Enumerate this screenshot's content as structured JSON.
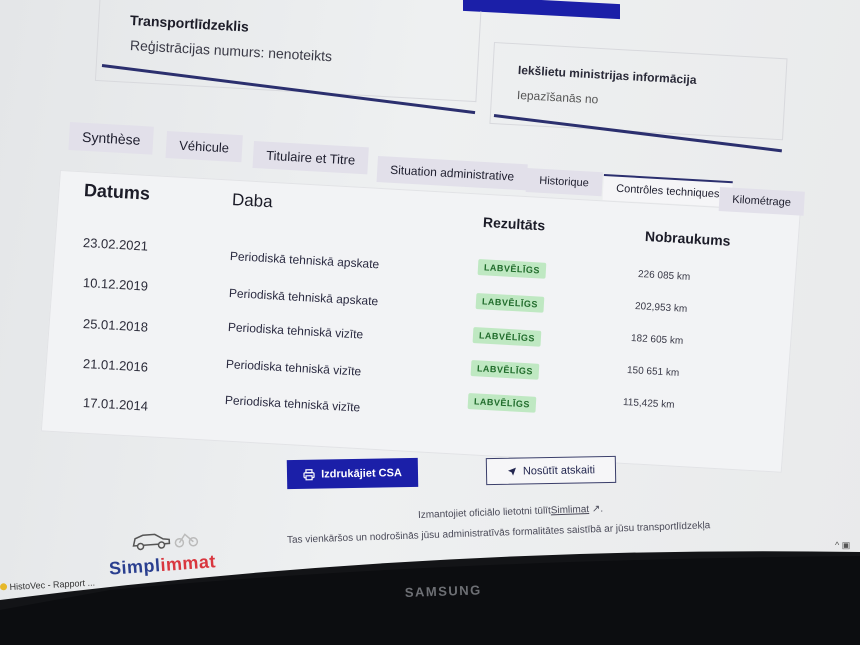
{
  "vehicle_card": {
    "title": "Transportlīdzeklis",
    "registration": "Reģistrācijas numurs: nenoteikts"
  },
  "ministry_card": {
    "title": "Iekšlietu ministrijas informācija",
    "subtitle": "Iepazīšanās no"
  },
  "tabs": [
    {
      "label": "Synthèse"
    },
    {
      "label": "Véhicule"
    },
    {
      "label": "Titulaire et Titre"
    },
    {
      "label": "Situation administrative"
    },
    {
      "label": "Historique"
    },
    {
      "label": "Contrôles techniques",
      "active": true
    },
    {
      "label": "Kilométrage"
    }
  ],
  "table": {
    "headers": [
      "Datums",
      "Daba",
      "Rezultāts",
      "Nobraukums"
    ],
    "rows": [
      {
        "date": "23.02.2021",
        "type": "Periodiskā tehniskā apskate",
        "result": "LABVĒLĪGS",
        "mileage": "226 085 km"
      },
      {
        "date": "10.12.2019",
        "type": "Periodiskā tehniskā apskate",
        "result": "LABVĒLĪGS",
        "mileage": "202,953 km"
      },
      {
        "date": "25.01.2018",
        "type": "Periodiska tehniskā vizīte",
        "result": "LABVĒLĪGS",
        "mileage": "182 605 km"
      },
      {
        "date": "21.01.2016",
        "type": "Periodiska tehniskā vizīte",
        "result": "LABVĒLĪGS",
        "mileage": "150 651 km"
      },
      {
        "date": "17.01.2014",
        "type": "Periodiska tehniskā vizīte",
        "result": "LABVĒLĪGS",
        "mileage": "115,425 km"
      }
    ]
  },
  "actions": {
    "print_label": "Izdrukājiet CSA",
    "send_label": "Nosūtīt atskaiti"
  },
  "footer": {
    "line1_prefix": "Izmantojiet oficiālo lietotni tūlīt",
    "line1_link": "Simlimat",
    "line2": "Tas vienkāršos un nodrošinās jūsu administratīvās formalitātes saistībā ar jūsu transportlīdzekļa"
  },
  "logo": {
    "part1": "Simpl",
    "part2": "immat"
  },
  "taskbar": {
    "item": "HistoVec - Rapport ..."
  },
  "monitor": {
    "brand": "SAMSUNG"
  },
  "colors": {
    "accent": "#1b1fa8",
    "badge_bg": "#bfe8c2",
    "badge_text": "#1f6b2a",
    "logo_blue": "#2a3f8f",
    "logo_red": "#d9363e"
  }
}
